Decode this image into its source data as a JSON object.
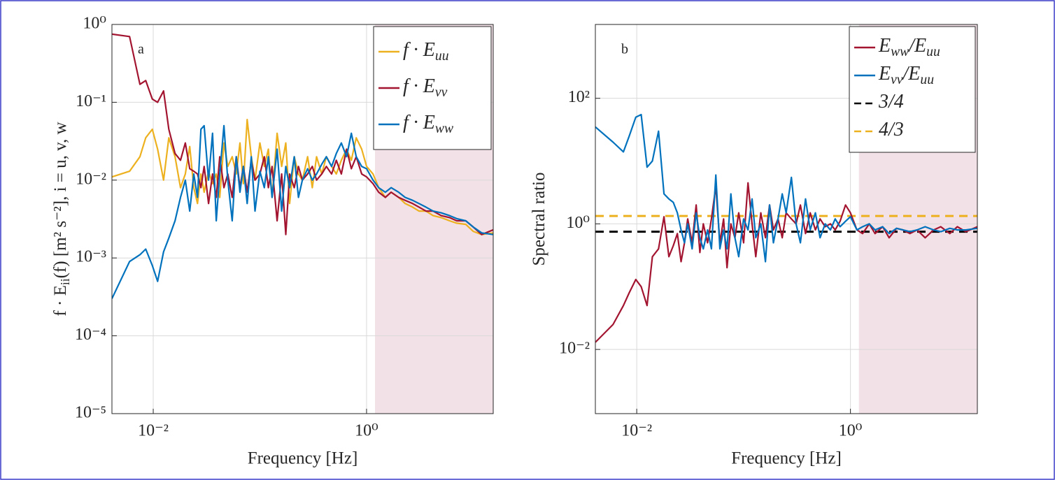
{
  "chart_data": [
    {
      "type": "line",
      "panel_label": "a",
      "xlabel": "Frequency [Hz]",
      "ylabel": "f · Eii(f) [m² s⁻²], i = u, v, w",
      "xscale": "log",
      "yscale": "log",
      "grid": true,
      "legend": "upper right",
      "xlim": [
        0.0041,
        15.4
      ],
      "ylim": [
        1e-05,
        1
      ],
      "xticks": [
        {
          "value": 0.01,
          "label": "10⁻²"
        },
        {
          "value": 1,
          "label": "10⁰"
        }
      ],
      "yticks": [
        {
          "value": 1e-05,
          "label": "10⁻⁵"
        },
        {
          "value": 0.0001,
          "label": "10⁻⁴"
        },
        {
          "value": 0.001,
          "label": "10⁻³"
        },
        {
          "value": 0.01,
          "label": "10⁻²"
        },
        {
          "value": 0.1,
          "label": "10⁻¹"
        },
        {
          "value": 1,
          "label": "10⁰"
        }
      ],
      "shaded_region": {
        "from": 1.2,
        "to": 15.4,
        "color": "#f2e1e6"
      },
      "x": [
        0.0041,
        0.006,
        0.0075,
        0.0085,
        0.0098,
        0.011,
        0.0125,
        0.014,
        0.016,
        0.018,
        0.02,
        0.022,
        0.024,
        0.026,
        0.028,
        0.03,
        0.033,
        0.036,
        0.039,
        0.042,
        0.046,
        0.05,
        0.055,
        0.06,
        0.065,
        0.07,
        0.076,
        0.083,
        0.09,
        0.1,
        0.11,
        0.12,
        0.13,
        0.145,
        0.16,
        0.175,
        0.19,
        0.21,
        0.23,
        0.25,
        0.28,
        0.31,
        0.34,
        0.38,
        0.42,
        0.47,
        0.52,
        0.58,
        0.65,
        0.72,
        0.8,
        0.9,
        1.0,
        1.15,
        1.3,
        1.5,
        1.7,
        2.0,
        2.3,
        2.7,
        3.1,
        3.6,
        4.2,
        5,
        6,
        7,
        8.5,
        10,
        12,
        15.4
      ],
      "series": [
        {
          "name": "f · Euu",
          "color": "#EDB120",
          "values": [
            0.011,
            0.013,
            0.02,
            0.035,
            0.045,
            0.025,
            0.01,
            0.035,
            0.02,
            0.008,
            0.012,
            0.027,
            0.008,
            0.005,
            0.012,
            0.007,
            0.013,
            0.009,
            0.012,
            0.006,
            0.03,
            0.015,
            0.02,
            0.012,
            0.03,
            0.009,
            0.06,
            0.02,
            0.01,
            0.03,
            0.015,
            0.025,
            0.006,
            0.04,
            0.015,
            0.03,
            0.005,
            0.02,
            0.012,
            0.01,
            0.02,
            0.008,
            0.02,
            0.012,
            0.02,
            0.015,
            0.012,
            0.018,
            0.025,
            0.018,
            0.035,
            0.025,
            0.015,
            0.012,
            0.008,
            0.006,
            0.007,
            0.006,
            0.005,
            0.0045,
            0.004,
            0.004,
            0.0035,
            0.0033,
            0.003,
            0.0028,
            0.0027,
            0.0022,
            0.002,
            0.0021
          ]
        },
        {
          "name": "f · Evv",
          "color": "#A2142F",
          "values": [
            0.75,
            0.7,
            0.17,
            0.19,
            0.11,
            0.1,
            0.14,
            0.045,
            0.022,
            0.018,
            0.03,
            0.014,
            0.013,
            0.012,
            0.008,
            0.015,
            0.005,
            0.012,
            0.006,
            0.02,
            0.008,
            0.012,
            0.006,
            0.02,
            0.008,
            0.015,
            0.007,
            0.018,
            0.01,
            0.012,
            0.02,
            0.008,
            0.015,
            0.003,
            0.012,
            0.002,
            0.012,
            0.008,
            0.015,
            0.01,
            0.012,
            0.015,
            0.01,
            0.012,
            0.015,
            0.012,
            0.018,
            0.012,
            0.025,
            0.014,
            0.02,
            0.012,
            0.011,
            0.009,
            0.007,
            0.006,
            0.007,
            0.006,
            0.0055,
            0.005,
            0.0045,
            0.004,
            0.004,
            0.0035,
            0.0033,
            0.003,
            0.003,
            0.0025,
            0.002,
            0.0023
          ]
        },
        {
          "name": "f · Eww",
          "color": "#0072BD",
          "values": [
            0.0003,
            0.0009,
            0.0011,
            0.0013,
            0.0008,
            0.0005,
            0.0012,
            0.0018,
            0.003,
            0.006,
            0.01,
            0.004,
            0.012,
            0.006,
            0.045,
            0.05,
            0.01,
            0.04,
            0.003,
            0.012,
            0.05,
            0.01,
            0.003,
            0.02,
            0.007,
            0.015,
            0.005,
            0.02,
            0.004,
            0.013,
            0.008,
            0.02,
            0.006,
            0.025,
            0.004,
            0.015,
            0.008,
            0.02,
            0.006,
            0.01,
            0.014,
            0.01,
            0.012,
            0.016,
            0.02,
            0.015,
            0.022,
            0.03,
            0.02,
            0.04,
            0.02,
            0.015,
            0.014,
            0.01,
            0.008,
            0.007,
            0.008,
            0.007,
            0.006,
            0.0055,
            0.005,
            0.0045,
            0.004,
            0.0038,
            0.0035,
            0.0032,
            0.003,
            0.0025,
            0.0021,
            0.002
          ]
        }
      ],
      "hlines": []
    },
    {
      "type": "line",
      "panel_label": "b",
      "xlabel": "Frequency [Hz]",
      "ylabel": "Spectral ratio",
      "xscale": "log",
      "yscale": "log",
      "grid": true,
      "legend": "upper right",
      "xlim": [
        0.0041,
        15.4
      ],
      "ylim": [
        0.00095,
        1500
      ],
      "xticks": [
        {
          "value": 0.01,
          "label": "10⁻²"
        },
        {
          "value": 1,
          "label": "10⁰"
        }
      ],
      "yticks": [
        {
          "value": 0.01,
          "label": "10⁻²"
        },
        {
          "value": 1,
          "label": "10⁰"
        },
        {
          "value": 100,
          "label": "10²"
        }
      ],
      "shaded_region": {
        "from": 1.2,
        "to": 15.4,
        "color": "#f2e1e6"
      },
      "x": [
        0.0041,
        0.006,
        0.0075,
        0.0085,
        0.0098,
        0.011,
        0.0125,
        0.014,
        0.016,
        0.018,
        0.02,
        0.022,
        0.024,
        0.026,
        0.028,
        0.03,
        0.033,
        0.036,
        0.039,
        0.042,
        0.046,
        0.05,
        0.055,
        0.06,
        0.065,
        0.07,
        0.076,
        0.083,
        0.09,
        0.1,
        0.11,
        0.12,
        0.13,
        0.145,
        0.16,
        0.175,
        0.19,
        0.21,
        0.23,
        0.25,
        0.28,
        0.31,
        0.34,
        0.38,
        0.42,
        0.47,
        0.52,
        0.58,
        0.65,
        0.72,
        0.8,
        0.9,
        1.0,
        1.15,
        1.3,
        1.5,
        1.7,
        2.0,
        2.3,
        2.7,
        3.1,
        3.6,
        4.2,
        5,
        6,
        7,
        8.5,
        10,
        12,
        15.4
      ],
      "series": [
        {
          "name": "Eww/Euu",
          "color": "#A2142F",
          "values": [
            0.013,
            0.025,
            0.05,
            0.08,
            0.13,
            0.1,
            0.05,
            0.3,
            0.4,
            1.3,
            0.3,
            0.45,
            0.7,
            0.25,
            0.5,
            1.2,
            0.5,
            2.0,
            0.35,
            1.0,
            0.5,
            1.2,
            4,
            0.5,
            1.2,
            0.2,
            1.0,
            0.6,
            1.5,
            0.5,
            4.5,
            1.0,
            0.3,
            1.5,
            0.6,
            2.0,
            0.8,
            1.2,
            0.6,
            1.5,
            1.2,
            1.0,
            2.0,
            0.7,
            1.5,
            0.8,
            1.2,
            0.9,
            1.0,
            0.8,
            1.1,
            2.0,
            1.5,
            0.8,
            0.7,
            1.0,
            0.7,
            0.9,
            0.6,
            0.85,
            0.8,
            0.7,
            0.8,
            0.6,
            0.8,
            0.9,
            0.7,
            0.9,
            0.75,
            0.9
          ]
        },
        {
          "name": "Evv/Euu",
          "color": "#0072BD",
          "values": [
            35,
            20,
            14,
            25,
            50,
            55,
            8,
            10,
            30,
            3,
            2.5,
            2.2,
            1.5,
            0.8,
            0.5,
            1.0,
            0.4,
            1.5,
            0.6,
            0.4,
            0.8,
            0.4,
            6,
            0.4,
            0.8,
            0.4,
            3,
            0.6,
            0.3,
            1.2,
            0.8,
            2.5,
            0.6,
            1.0,
            0.25,
            2,
            0.5,
            1.2,
            3,
            1.5,
            5.5,
            1.0,
            0.5,
            2.5,
            0.8,
            1.5,
            0.6,
            1.0,
            0.8,
            1.2,
            0.9,
            1.1,
            1.3,
            0.8,
            0.9,
            1.0,
            0.8,
            0.9,
            0.7,
            0.85,
            0.8,
            0.75,
            0.8,
            0.9,
            0.8,
            0.75,
            0.85,
            0.8,
            0.8,
            0.85
          ]
        }
      ],
      "hlines": [
        {
          "name": "3/4",
          "value": 0.75,
          "color": "#000000",
          "dashed": true
        },
        {
          "name": "4/3",
          "value": 1.3333,
          "color": "#EDB120",
          "dashed": true
        }
      ]
    }
  ]
}
